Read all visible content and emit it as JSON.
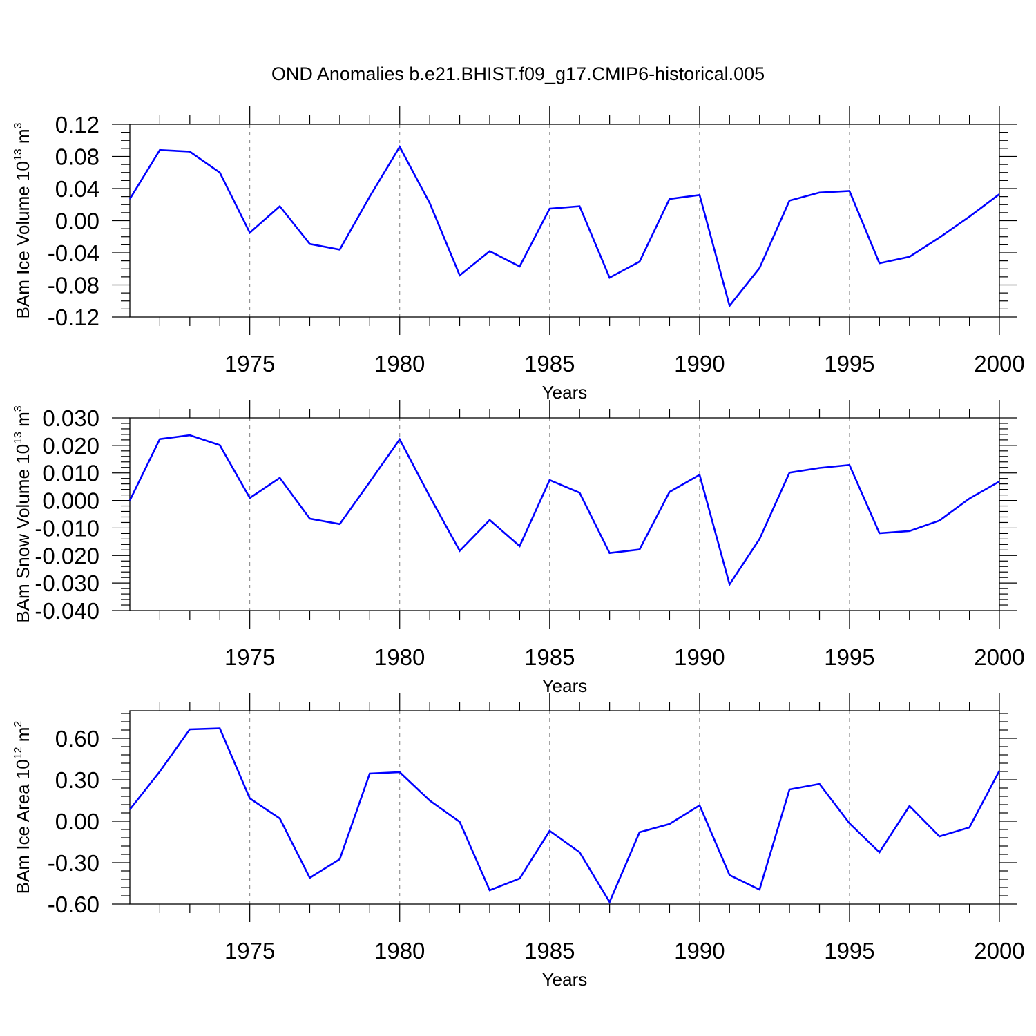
{
  "title": "OND Anomalies b.e21.BHIST.f09_g17.CMIP6-historical.005",
  "colors": {
    "line": "#0000ff",
    "grid": "#7f7f7f",
    "axis": "#000000"
  },
  "chart_data": [
    {
      "type": "line",
      "xlabel": "Years",
      "ylabel": {
        "prefix": "BAm Ice Volume 10",
        "exp": "13",
        "unit": " m",
        "unit_exp": "3"
      },
      "xlim": [
        1971,
        2000
      ],
      "ylim": [
        -0.12,
        0.12
      ],
      "xticks": [
        "1975",
        "1980",
        "1985",
        "1990",
        "1995",
        "2000"
      ],
      "yticks": [
        "0.12",
        "0.08",
        "0.04",
        "0.00",
        "-0.04",
        "-0.08",
        "-0.12"
      ],
      "grid": "vertical dashed at major x ticks",
      "x": [
        1971,
        1972,
        1973,
        1974,
        1975,
        1976,
        1977,
        1978,
        1979,
        1980,
        1981,
        1982,
        1983,
        1984,
        1985,
        1986,
        1987,
        1988,
        1989,
        1990,
        1991,
        1992,
        1993,
        1994,
        1995,
        1996,
        1997,
        1998,
        1999,
        2000
      ],
      "y": [
        0.027,
        0.088,
        0.086,
        0.06,
        -0.015,
        0.018,
        -0.029,
        -0.036,
        0.03,
        0.092,
        0.022,
        -0.068,
        -0.038,
        -0.057,
        0.015,
        0.018,
        -0.071,
        -0.051,
        0.027,
        0.032,
        -0.106,
        -0.059,
        0.025,
        0.035,
        0.037,
        -0.053,
        -0.045,
        -0.021,
        0.005,
        0.033
      ]
    },
    {
      "type": "line",
      "xlabel": "Years",
      "ylabel": {
        "prefix": "BAm Snow Volume 10",
        "exp": "13",
        "unit": " m",
        "unit_exp": "3"
      },
      "xlim": [
        1971,
        2000
      ],
      "ylim": [
        -0.04,
        0.03
      ],
      "xticks": [
        "1975",
        "1980",
        "1985",
        "1990",
        "1995",
        "2000"
      ],
      "yticks": [
        "0.030",
        "0.020",
        "0.010",
        "0.000",
        "-0.010",
        "-0.020",
        "-0.030",
        "-0.040"
      ],
      "grid": "vertical dashed at major x ticks",
      "x": [
        1971,
        1972,
        1973,
        1974,
        1975,
        1976,
        1977,
        1978,
        1979,
        1980,
        1981,
        1982,
        1983,
        1984,
        1985,
        1986,
        1987,
        1988,
        1989,
        1990,
        1991,
        1992,
        1993,
        1994,
        1995,
        1996,
        1997,
        1998,
        1999,
        2000
      ],
      "y": [
        0.0,
        0.0223,
        0.0237,
        0.0201,
        0.0009,
        0.0082,
        -0.0066,
        -0.0086,
        0.0067,
        0.0222,
        0.0015,
        -0.0183,
        -0.0071,
        -0.0166,
        0.0074,
        0.0028,
        -0.0191,
        -0.0178,
        0.0031,
        0.0093,
        -0.0305,
        -0.014,
        0.0101,
        0.0118,
        0.0129,
        -0.0119,
        -0.0111,
        -0.0073,
        0.0007,
        0.0069
      ]
    },
    {
      "type": "line",
      "xlabel": "Years",
      "ylabel": {
        "prefix": "BAm Ice Area 10",
        "exp": "12",
        "unit": " m",
        "unit_exp": "2"
      },
      "xlim": [
        1971,
        2000
      ],
      "ylim": [
        -0.6,
        0.8
      ],
      "xticks": [
        "1975",
        "1980",
        "1985",
        "1990",
        "1995",
        "2000"
      ],
      "yticks": [
        "0.60",
        "0.30",
        "0.00",
        "-0.30",
        "-0.60"
      ],
      "grid": "vertical dashed at major x ticks",
      "x": [
        1971,
        1972,
        1973,
        1974,
        1975,
        1976,
        1977,
        1978,
        1979,
        1980,
        1981,
        1982,
        1983,
        1984,
        1985,
        1986,
        1987,
        1988,
        1989,
        1990,
        1991,
        1992,
        1993,
        1994,
        1995,
        1996,
        1997,
        1998,
        1999,
        2000
      ],
      "y": [
        0.085,
        0.36,
        0.665,
        0.672,
        0.165,
        0.02,
        -0.41,
        -0.275,
        0.345,
        0.355,
        0.15,
        -0.005,
        -0.5,
        -0.415,
        -0.07,
        -0.225,
        -0.585,
        -0.08,
        -0.02,
        0.115,
        -0.39,
        -0.495,
        0.23,
        0.27,
        -0.015,
        -0.225,
        0.11,
        -0.11,
        -0.045,
        0.365
      ]
    }
  ]
}
